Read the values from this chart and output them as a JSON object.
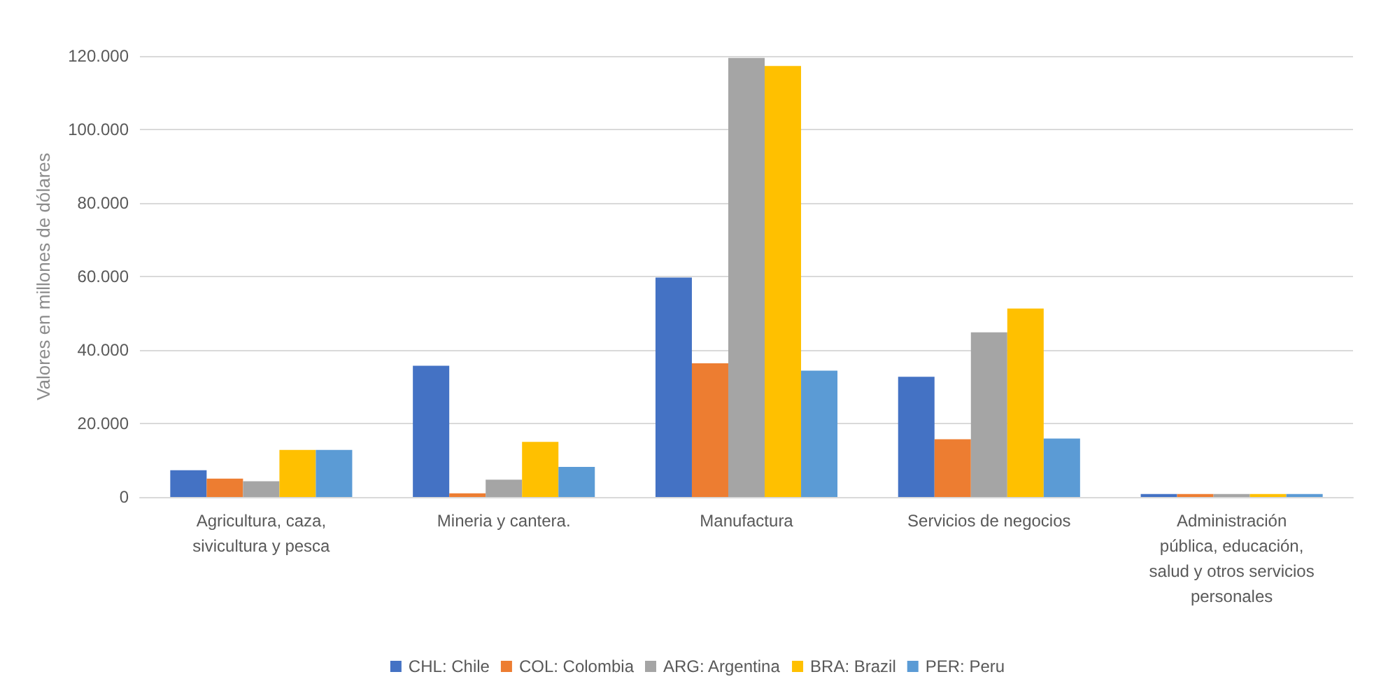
{
  "chart_data": {
    "type": "bar",
    "ylabel": "Valores en millones de dólares",
    "categories": [
      "Agricultura, caza,\nsivicultura y pesca",
      "Mineria y cantera.",
      "Manufactura",
      "Servicios de negocios",
      "Administración\npública, educación,\nsalud y otros servicios\npersonales"
    ],
    "series": [
      {
        "name": "CHL: Chile",
        "color": "#4472c4",
        "values": [
          7300,
          35700,
          59700,
          32700,
          800
        ]
      },
      {
        "name": "COL: Colombia",
        "color": "#ed7d31",
        "values": [
          5000,
          1000,
          36400,
          15700,
          800
        ]
      },
      {
        "name": "ARG: Argentina",
        "color": "#a5a5a5",
        "values": [
          4300,
          4700,
          119500,
          44800,
          800
        ]
      },
      {
        "name": "BRA: Brazil",
        "color": "#ffc000",
        "values": [
          12800,
          15000,
          117300,
          51300,
          800
        ]
      },
      {
        "name": "PER: Peru",
        "color": "#5b9bd5",
        "values": [
          12800,
          8200,
          34400,
          15900,
          800
        ]
      }
    ],
    "ylim": [
      0,
      120000
    ],
    "yticks": [
      {
        "value": 0,
        "label": "0"
      },
      {
        "value": 20000,
        "label": "20.000"
      },
      {
        "value": 40000,
        "label": "40.000"
      },
      {
        "value": 60000,
        "label": "60.000"
      },
      {
        "value": 80000,
        "label": "80.000"
      },
      {
        "value": 100000,
        "label": "100.000"
      },
      {
        "value": 120000,
        "label": "120.000"
      }
    ],
    "grid": "y",
    "legend": "bottom"
  }
}
